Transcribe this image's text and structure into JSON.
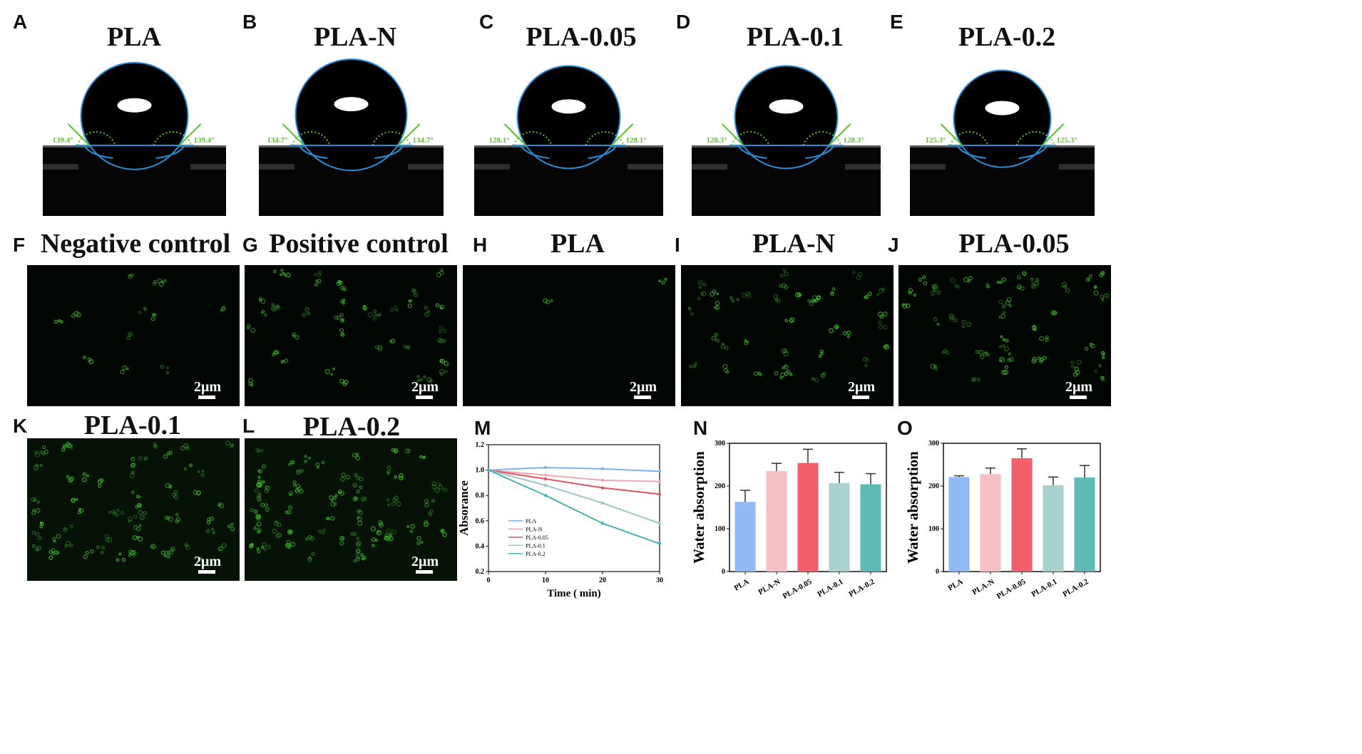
{
  "letters": [
    "A",
    "B",
    "C",
    "D",
    "E",
    "F",
    "G",
    "H",
    "I",
    "J",
    "K",
    "L",
    "M",
    "N",
    "O"
  ],
  "contact_angle": {
    "titles": [
      "PLA",
      "PLA-N",
      "PLA-0.05",
      "PLA-0.1",
      "PLA-0.2"
    ],
    "angles": [
      "139.4°",
      "134.7°",
      "128.1°",
      "128.3°",
      "125.3°"
    ],
    "angle_color": "#5cc12e",
    "outline_color": "#2a8ed8"
  },
  "fluorescence": {
    "titles": [
      "Negative control",
      "Positive control",
      "PLA",
      "PLA-N",
      "PLA-0.05",
      "PLA-0.1",
      "PLA-0.2"
    ],
    "scale_label": "2μm",
    "dot_color": "#3fbf2a"
  },
  "chart_data": [
    {
      "type": "line",
      "x": [
        0,
        10,
        20,
        30
      ],
      "xlabel": "Time ( min)",
      "ylabel": "Absorance",
      "xlim": [
        0,
        30
      ],
      "ylim": [
        0.2,
        1.2
      ],
      "xticks": [
        "0",
        "10",
        "20",
        "30"
      ],
      "yticks": [
        "0.2",
        "0.4",
        "0.6",
        "0.8",
        "1.0",
        "1.2"
      ],
      "legend_position": "bottom-left",
      "series": [
        {
          "name": "PLA",
          "values": [
            1.0,
            1.02,
            1.01,
            0.99
          ],
          "color": "#7eb3ee"
        },
        {
          "name": "PLA-N",
          "values": [
            1.0,
            0.96,
            0.92,
            0.91
          ],
          "color": "#f0a8ae"
        },
        {
          "name": "PLA-0.05",
          "values": [
            1.0,
            0.93,
            0.86,
            0.81
          ],
          "color": "#e0525c"
        },
        {
          "name": "PLA-0.1",
          "values": [
            1.0,
            0.88,
            0.74,
            0.58
          ],
          "color": "#9cc8c4"
        },
        {
          "name": "PLA-0.2",
          "values": [
            1.0,
            0.8,
            0.58,
            0.42
          ],
          "color": "#4ab0b6"
        }
      ]
    },
    {
      "type": "bar",
      "categories": [
        "PLA",
        "PLA-N",
        "PLA-0.05",
        "PLA-0.1",
        "PLA-0.2"
      ],
      "values": [
        163,
        235,
        254,
        207,
        204
      ],
      "errors": [
        27,
        18,
        32,
        25,
        25
      ],
      "colors": [
        "#8fbaf5",
        "#f4c0c4",
        "#f25f6b",
        "#a9d2cf",
        "#5fb9b7"
      ],
      "ylabel": "Water absorption",
      "ylim": [
        0,
        300
      ],
      "yticks": [
        "0",
        "100",
        "200",
        "300"
      ]
    },
    {
      "type": "bar",
      "categories": [
        "PLA",
        "PLA-N",
        "PLA-0.05",
        "PLA-0.1",
        "PLA-0.2"
      ],
      "values": [
        221,
        228,
        265,
        202,
        220
      ],
      "errors": [
        3,
        14,
        22,
        19,
        28
      ],
      "colors": [
        "#8fbaf5",
        "#f4c0c4",
        "#f25f6b",
        "#a9d2cf",
        "#5fb9b7"
      ],
      "ylabel": "Water absorption",
      "ylim": [
        0,
        300
      ],
      "yticks": [
        "0",
        "100",
        "200",
        "300"
      ]
    }
  ]
}
